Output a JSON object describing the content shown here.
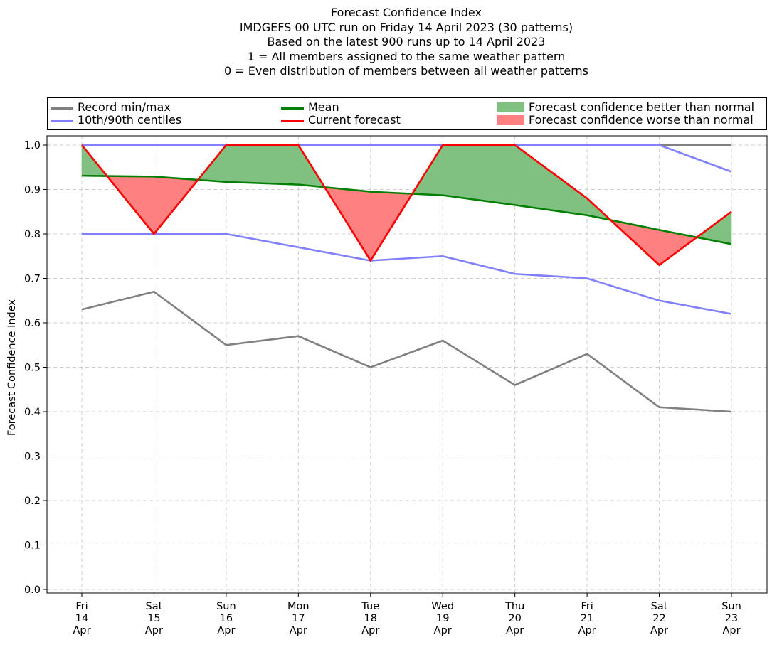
{
  "chart_data": {
    "type": "line",
    "title_lines": [
      "Forecast Confidence Index",
      "IMDGEFS 00 UTC run on Friday 14 April 2023 (30 patterns)",
      "Based on the latest 900 runs up to 14 April 2023",
      "1 = All members assigned to the same weather pattern",
      "0 = Even distribution of members between all weather patterns"
    ],
    "ylabel": "Forecast Confidence Index",
    "xlabel": "",
    "ylim": [
      0,
      1
    ],
    "yticks": [
      "0.0",
      "0.1",
      "0.2",
      "0.3",
      "0.4",
      "0.5",
      "0.6",
      "0.7",
      "0.8",
      "0.9",
      "1.0"
    ],
    "x_labels": [
      [
        "Fri",
        "14",
        "Apr"
      ],
      [
        "Sat",
        "15",
        "Apr"
      ],
      [
        "Sun",
        "16",
        "Apr"
      ],
      [
        "Mon",
        "17",
        "Apr"
      ],
      [
        "Tue",
        "18",
        "Apr"
      ],
      [
        "Wed",
        "19",
        "Apr"
      ],
      [
        "Thu",
        "20",
        "Apr"
      ],
      [
        "Fri",
        "21",
        "Apr"
      ],
      [
        "Sat",
        "22",
        "Apr"
      ],
      [
        "Sun",
        "23",
        "Apr"
      ]
    ],
    "grid": true,
    "legend_position": "top",
    "series": [
      {
        "name": "Record min/max",
        "role": "record_min",
        "color": "#808080",
        "values": [
          0.63,
          0.67,
          0.55,
          0.57,
          0.5,
          0.56,
          0.46,
          0.53,
          0.41,
          0.4
        ]
      },
      {
        "role": "record_max",
        "color": "#808080",
        "values": [
          1.0,
          1.0,
          1.0,
          1.0,
          1.0,
          1.0,
          1.0,
          1.0,
          1.0,
          1.0
        ]
      },
      {
        "name": "10th/90th centiles",
        "role": "p10",
        "color": "#8080ff",
        "values": [
          0.8,
          0.8,
          0.8,
          0.77,
          0.74,
          0.75,
          0.71,
          0.7,
          0.65,
          0.62
        ]
      },
      {
        "role": "p90",
        "color": "#8080ff",
        "values": [
          1.0,
          1.0,
          1.0,
          1.0,
          1.0,
          1.0,
          1.0,
          1.0,
          1.0,
          0.94
        ]
      },
      {
        "name": "Mean",
        "role": "mean",
        "color": "#008000",
        "values": [
          0.931,
          0.929,
          0.917,
          0.911,
          0.895,
          0.887,
          0.865,
          0.842,
          0.809,
          0.777
        ]
      },
      {
        "name": "Current forecast",
        "role": "current",
        "color": "#ff0000",
        "values": [
          1.0,
          0.8,
          1.0,
          1.0,
          0.74,
          1.0,
          1.0,
          0.88,
          0.73,
          0.85
        ]
      }
    ],
    "fills": [
      {
        "name": "Forecast confidence better than normal",
        "color": "#80c080"
      },
      {
        "name": "Forecast confidence worse than normal",
        "color": "#ff8080"
      }
    ]
  }
}
